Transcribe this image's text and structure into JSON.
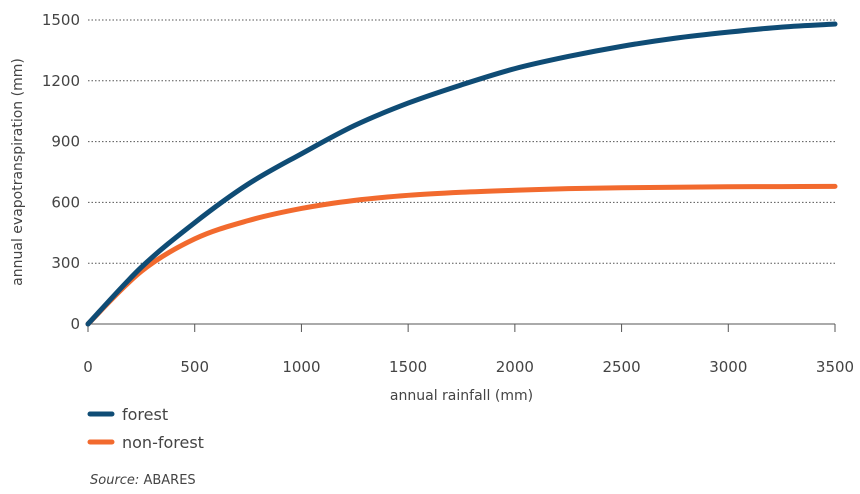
{
  "chart_data": {
    "type": "line",
    "xlabel": "annual rainfall (mm)",
    "ylabel": "annual evapotranspiration (mm)",
    "xlim": [
      0,
      3500
    ],
    "ylim": [
      0,
      1500
    ],
    "x_ticks": [
      0,
      500,
      1000,
      1500,
      2000,
      2500,
      3000,
      3500
    ],
    "y_ticks": [
      0,
      300,
      600,
      900,
      1200,
      1500
    ],
    "x_tick_labels": [
      "0",
      "500",
      "1000",
      "1500",
      "2000",
      "2500",
      "3000",
      "3500"
    ],
    "y_tick_labels": [
      "0",
      "300",
      "600",
      "900",
      "1200",
      "1500"
    ],
    "grid": "horizontal dotted",
    "legend_position": "bottom-left",
    "series": [
      {
        "name": "forest",
        "color": "#0f4c75",
        "x": [
          0,
          250,
          500,
          750,
          1000,
          1250,
          1500,
          1750,
          2000,
          2250,
          2500,
          2750,
          3000,
          3250,
          3500
        ],
        "y": [
          0,
          280,
          500,
          690,
          840,
          980,
          1090,
          1180,
          1260,
          1320,
          1370,
          1410,
          1440,
          1465,
          1480
        ]
      },
      {
        "name": "non-forest",
        "color": "#f26a2e",
        "x": [
          0,
          250,
          500,
          750,
          1000,
          1250,
          1500,
          1750,
          2000,
          2250,
          2500,
          2750,
          3000,
          3250,
          3500
        ],
        "y": [
          0,
          260,
          420,
          510,
          570,
          610,
          635,
          650,
          660,
          668,
          672,
          675,
          677,
          678,
          679
        ]
      }
    ]
  },
  "source": {
    "label": "Source:",
    "text": " ABARES"
  }
}
